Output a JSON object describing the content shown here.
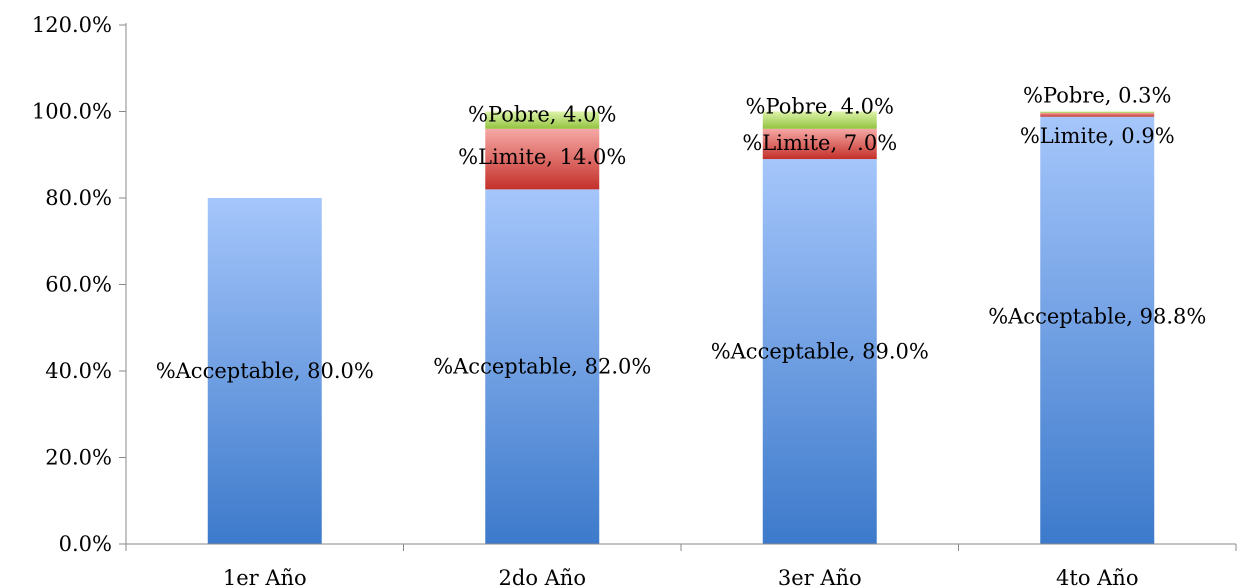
{
  "chart_data": {
    "type": "bar",
    "stacked": true,
    "categories": [
      "1er Año",
      "2do Año",
      "3er Año",
      "4to Año"
    ],
    "series": [
      {
        "name": "%Acceptable",
        "values": [
          80.0,
          82.0,
          89.0,
          98.8
        ],
        "color": "#4a86d4"
      },
      {
        "name": "%Limite",
        "values": [
          null,
          14.0,
          7.0,
          0.9
        ],
        "color": "#d9423b"
      },
      {
        "name": "%Pobre",
        "values": [
          null,
          4.0,
          4.0,
          0.3
        ],
        "color": "#9fcc4e"
      }
    ],
    "data_labels": [
      [
        "%Acceptable, 80.0%",
        "%Acceptable, 82.0%",
        "%Acceptable, 89.0%",
        "%Acceptable, 98.8%"
      ],
      [
        null,
        "%Limite, 14.0%",
        "%Limite, 7.0%",
        "%Limite, 0.9%"
      ],
      [
        null,
        "%Pobre, 4.0%",
        "%Pobre, 4.0%",
        "%Pobre, 0.3%"
      ]
    ],
    "y_ticks": [
      "0.0%",
      "20.0%",
      "40.0%",
      "60.0%",
      "80.0%",
      "100.0%",
      "120.0%"
    ],
    "ylim": [
      0,
      120
    ],
    "grid": false,
    "legend": "none",
    "title": "",
    "xlabel": "",
    "ylabel": ""
  }
}
